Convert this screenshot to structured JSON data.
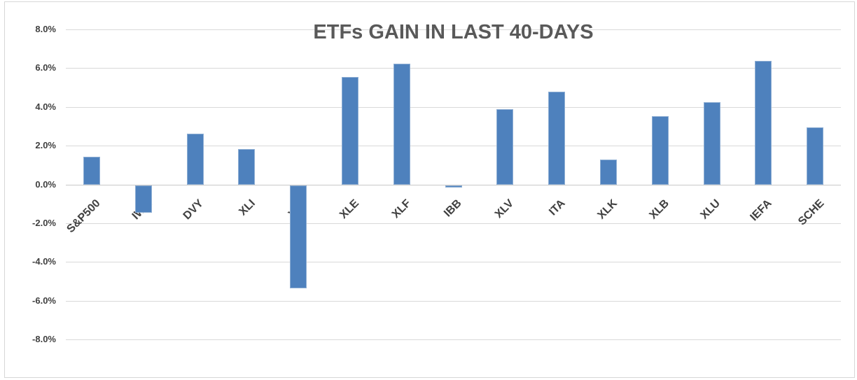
{
  "chart_data": {
    "type": "bar",
    "title": "ETFs GAIN IN LAST 40-DAYS",
    "categories": [
      "S&P500",
      "IWM",
      "DVY",
      "XLI",
      "XLY",
      "XLE",
      "XLF",
      "IBB",
      "XLV",
      "ITA",
      "XLK",
      "XLB",
      "XLU",
      "IEFA",
      "SCHE"
    ],
    "values": [
      1.45,
      -1.4,
      2.65,
      1.85,
      -5.3,
      5.55,
      6.25,
      -0.1,
      3.9,
      4.8,
      1.3,
      3.55,
      4.25,
      6.4,
      2.95
    ],
    "value_unit": "percent",
    "xlabel": "",
    "ylabel": "",
    "y_ticks": [
      "8.0%",
      "6.0%",
      "4.0%",
      "2.0%",
      "0.0%",
      "-2.0%",
      "-4.0%",
      "-6.0%",
      "-8.0%"
    ],
    "y_tick_values": [
      8,
      6,
      4,
      2,
      0,
      -2,
      -4,
      -6,
      -8
    ],
    "ylim": [
      -8,
      8
    ],
    "grid": true,
    "legend": false,
    "colors": {
      "bar_fill": "#4e81bd",
      "bar_border": "#8fafd4",
      "gridline": "#d9d9d9",
      "zero_line": "#c8c8c8",
      "title_text": "#595959",
      "axis_text": "#404040",
      "frame_border": "#d7d7d7",
      "background": "#ffffff"
    }
  }
}
